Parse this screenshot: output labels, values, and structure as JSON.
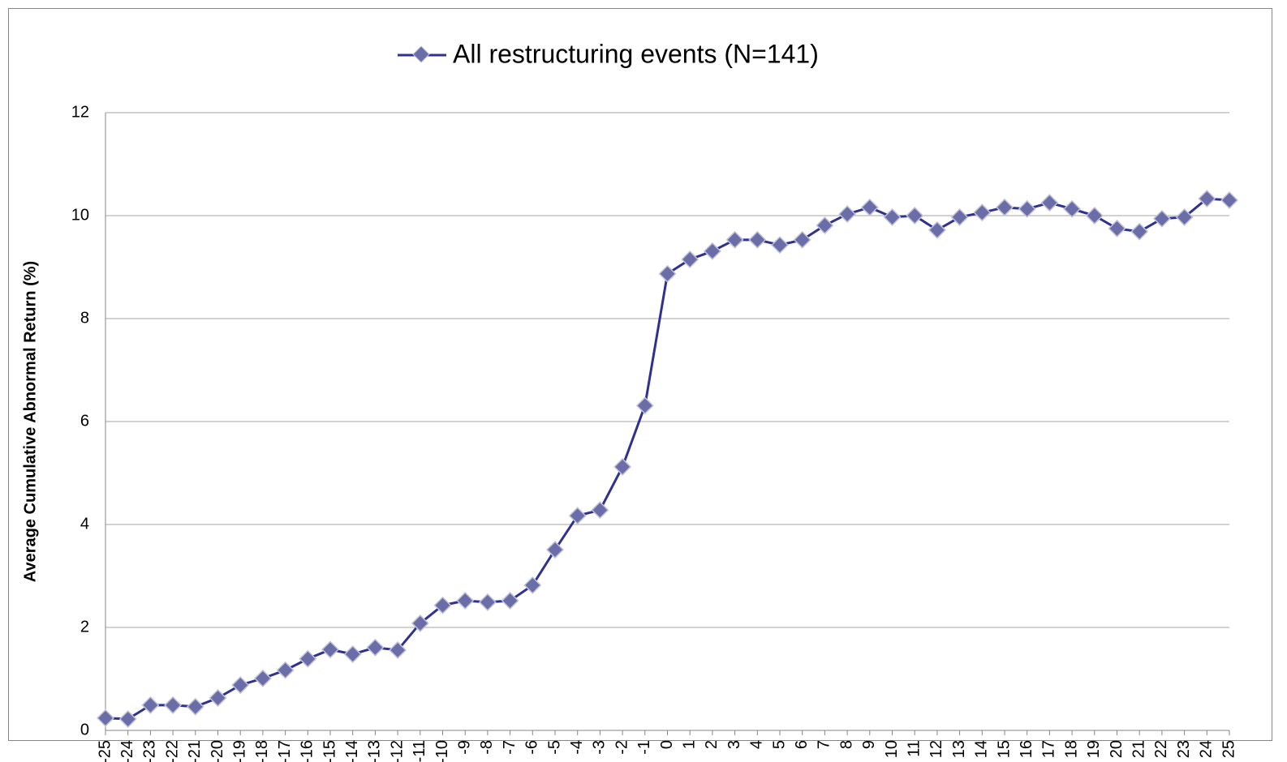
{
  "chart_data": {
    "type": "line",
    "legend": "All restructuring events (N=141)",
    "y_label": "Average Cumulative Abnormal Return (%)",
    "x": [
      -25,
      -24,
      -23,
      -22,
      -21,
      -20,
      -19,
      -18,
      -17,
      -16,
      -15,
      -14,
      -13,
      -12,
      -11,
      -10,
      -9,
      -8,
      -7,
      -6,
      -5,
      -4,
      -3,
      -2,
      -1,
      0,
      1,
      2,
      3,
      4,
      5,
      6,
      7,
      8,
      9,
      10,
      11,
      12,
      13,
      14,
      15,
      16,
      17,
      18,
      19,
      20,
      21,
      22,
      23,
      24,
      25
    ],
    "xlim": [
      -25,
      25
    ],
    "xticks": [
      -25,
      -24,
      -23,
      -22,
      -21,
      -20,
      -19,
      -18,
      -17,
      -16,
      -15,
      -14,
      -13,
      -12,
      -11,
      -10,
      -9,
      -8,
      -7,
      -6,
      -5,
      -4,
      -3,
      -2,
      -1,
      0,
      1,
      2,
      3,
      4,
      5,
      6,
      7,
      8,
      9,
      10,
      11,
      12,
      13,
      14,
      15,
      16,
      17,
      18,
      19,
      20,
      21,
      22,
      23,
      24,
      25
    ],
    "series": [
      {
        "name": "All restructuring events (N=141)",
        "color": "#2e3192",
        "marker_color": "#6b6da8",
        "values": [
          0.24,
          0.22,
          0.49,
          0.49,
          0.46,
          0.63,
          0.88,
          1.01,
          1.17,
          1.39,
          1.57,
          1.48,
          1.61,
          1.56,
          2.08,
          2.43,
          2.52,
          2.49,
          2.52,
          2.82,
          3.51,
          4.17,
          4.28,
          5.12,
          6.31,
          8.87,
          9.15,
          9.31,
          9.53,
          9.53,
          9.43,
          9.53,
          9.81,
          10.03,
          10.16,
          9.97,
          10.0,
          9.72,
          9.97,
          10.06,
          10.16,
          10.13,
          10.25,
          10.13,
          10.0,
          9.75,
          9.69,
          9.94,
          9.97,
          10.33,
          10.3
        ]
      }
    ],
    "ylim": [
      0,
      12
    ],
    "yticks": [
      0,
      2,
      4,
      6,
      8,
      10,
      12
    ],
    "grid": true
  }
}
